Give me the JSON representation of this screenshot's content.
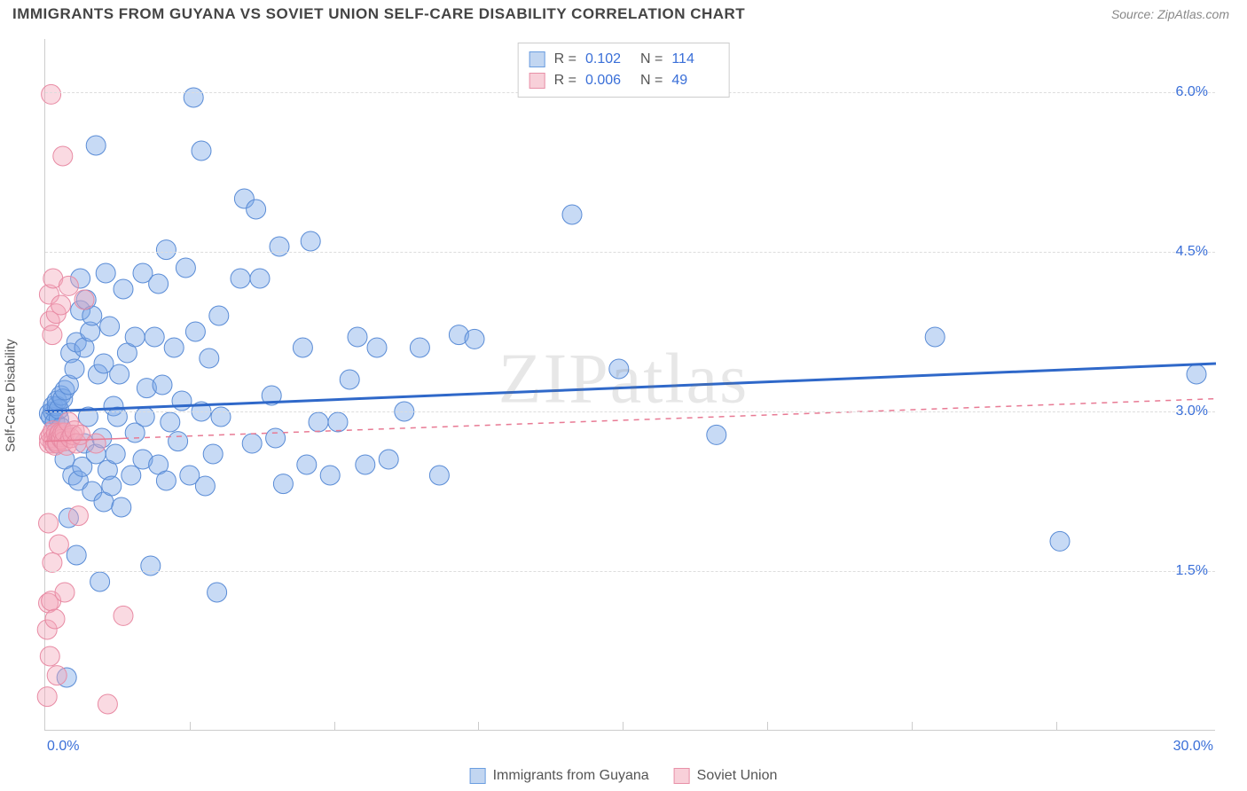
{
  "header": {
    "title": "IMMIGRANTS FROM GUYANA VS SOVIET UNION SELF-CARE DISABILITY CORRELATION CHART",
    "source_prefix": "Source: ",
    "source": "ZipAtlas.com"
  },
  "watermark": "ZIPatlas",
  "chart": {
    "type": "scatter",
    "ylabel": "Self-Care Disability",
    "xlim": [
      0,
      30
    ],
    "ylim": [
      0,
      6.5
    ],
    "xticks_minor": [
      3.7,
      7.4,
      11.1,
      14.8,
      18.5,
      22.2,
      25.9
    ],
    "xtick_end": {
      "pos": 30,
      "label": "30.0%"
    },
    "xtick_start": {
      "pos": 0,
      "label": "0.0%"
    },
    "yticks": [
      {
        "pos": 1.5,
        "label": "1.5%"
      },
      {
        "pos": 3.0,
        "label": "3.0%"
      },
      {
        "pos": 4.5,
        "label": "4.5%"
      },
      {
        "pos": 6.0,
        "label": "6.0%"
      }
    ],
    "background_color": "#ffffff",
    "grid_color": "#dddddd",
    "axis_color": "#cccccc",
    "tick_label_color": "#3a6fd8",
    "marker_radius": 11,
    "marker_opacity": 0.42,
    "series": [
      {
        "name": "Immigrants from Guyana",
        "color_fill": "#7aa8e6",
        "color_stroke": "#5a8cd6",
        "R": "0.102",
        "N": "114",
        "trend": {
          "type": "solid",
          "color": "#2f68c9",
          "width": 3,
          "x1": 0,
          "y1": 3.0,
          "x2": 30,
          "y2": 3.45
        },
        "points": [
          [
            0.1,
            2.98
          ],
          [
            0.15,
            2.95
          ],
          [
            0.2,
            3.0
          ],
          [
            0.2,
            3.05
          ],
          [
            0.25,
            2.9
          ],
          [
            0.3,
            3.05
          ],
          [
            0.3,
            2.7
          ],
          [
            0.3,
            3.1
          ],
          [
            0.35,
            2.93
          ],
          [
            0.35,
            3.02
          ],
          [
            0.4,
            3.15
          ],
          [
            0.4,
            2.85
          ],
          [
            0.45,
            3.12
          ],
          [
            0.5,
            2.55
          ],
          [
            0.5,
            3.2
          ],
          [
            0.55,
            0.5
          ],
          [
            0.6,
            2.0
          ],
          [
            0.6,
            3.25
          ],
          [
            0.65,
            3.55
          ],
          [
            0.7,
            2.4
          ],
          [
            0.75,
            3.4
          ],
          [
            0.8,
            1.65
          ],
          [
            0.8,
            3.65
          ],
          [
            0.85,
            2.35
          ],
          [
            0.9,
            3.95
          ],
          [
            0.9,
            4.25
          ],
          [
            0.95,
            2.48
          ],
          [
            1.0,
            3.6
          ],
          [
            1.0,
            2.7
          ],
          [
            1.05,
            4.05
          ],
          [
            1.1,
            2.95
          ],
          [
            1.15,
            3.75
          ],
          [
            1.2,
            2.25
          ],
          [
            1.2,
            3.9
          ],
          [
            1.3,
            5.5
          ],
          [
            1.3,
            2.6
          ],
          [
            1.35,
            3.35
          ],
          [
            1.4,
            1.4
          ],
          [
            1.45,
            2.75
          ],
          [
            1.5,
            2.15
          ],
          [
            1.5,
            3.45
          ],
          [
            1.55,
            4.3
          ],
          [
            1.6,
            2.45
          ],
          [
            1.65,
            3.8
          ],
          [
            1.7,
            2.3
          ],
          [
            1.75,
            3.05
          ],
          [
            1.8,
            2.6
          ],
          [
            1.85,
            2.95
          ],
          [
            1.9,
            3.35
          ],
          [
            1.95,
            2.1
          ],
          [
            2.0,
            4.15
          ],
          [
            2.1,
            3.55
          ],
          [
            2.2,
            2.4
          ],
          [
            2.3,
            2.8
          ],
          [
            2.3,
            3.7
          ],
          [
            2.5,
            4.3
          ],
          [
            2.5,
            2.55
          ],
          [
            2.55,
            2.95
          ],
          [
            2.6,
            3.22
          ],
          [
            2.7,
            1.55
          ],
          [
            2.8,
            3.7
          ],
          [
            2.9,
            2.5
          ],
          [
            2.9,
            4.2
          ],
          [
            3.0,
            3.25
          ],
          [
            3.1,
            4.52
          ],
          [
            3.1,
            2.35
          ],
          [
            3.2,
            2.9
          ],
          [
            3.3,
            3.6
          ],
          [
            3.4,
            2.72
          ],
          [
            3.5,
            3.1
          ],
          [
            3.6,
            4.35
          ],
          [
            3.7,
            2.4
          ],
          [
            3.8,
            5.95
          ],
          [
            3.85,
            3.75
          ],
          [
            4.0,
            5.45
          ],
          [
            4.0,
            3.0
          ],
          [
            4.1,
            2.3
          ],
          [
            4.2,
            3.5
          ],
          [
            4.3,
            2.6
          ],
          [
            4.4,
            1.3
          ],
          [
            4.45,
            3.9
          ],
          [
            4.5,
            2.95
          ],
          [
            5.0,
            4.25
          ],
          [
            5.1,
            5.0
          ],
          [
            5.3,
            2.7
          ],
          [
            5.4,
            4.9
          ],
          [
            5.5,
            4.25
          ],
          [
            5.8,
            3.15
          ],
          [
            5.9,
            2.75
          ],
          [
            6.0,
            4.55
          ],
          [
            6.1,
            2.32
          ],
          [
            6.6,
            3.6
          ],
          [
            6.7,
            2.5
          ],
          [
            6.8,
            4.6
          ],
          [
            7.0,
            2.9
          ],
          [
            7.3,
            2.4
          ],
          [
            7.5,
            2.9
          ],
          [
            7.8,
            3.3
          ],
          [
            8.0,
            3.7
          ],
          [
            8.2,
            2.5
          ],
          [
            8.5,
            3.6
          ],
          [
            8.8,
            2.55
          ],
          [
            9.2,
            3.0
          ],
          [
            9.6,
            3.6
          ],
          [
            10.1,
            2.4
          ],
          [
            10.6,
            3.72
          ],
          [
            11.0,
            3.68
          ],
          [
            13.5,
            4.85
          ],
          [
            14.7,
            3.4
          ],
          [
            17.2,
            2.78
          ],
          [
            22.8,
            3.7
          ],
          [
            26.0,
            1.78
          ],
          [
            29.5,
            3.35
          ]
        ]
      },
      {
        "name": "Soviet Union",
        "color_fill": "#f4a6ba",
        "color_stroke": "#e88ba4",
        "R": "0.006",
        "N": "49",
        "trend": {
          "type": "solid-then-dashed",
          "solid_xmax": 2.0,
          "color": "#e87a94",
          "width": 1.5,
          "x1": 0,
          "y1": 2.72,
          "x2": 30,
          "y2": 3.12
        },
        "points": [
          [
            0.05,
            0.32
          ],
          [
            0.05,
            0.95
          ],
          [
            0.08,
            1.2
          ],
          [
            0.08,
            1.95
          ],
          [
            0.1,
            4.1
          ],
          [
            0.1,
            2.75
          ],
          [
            0.1,
            2.7
          ],
          [
            0.12,
            3.85
          ],
          [
            0.12,
            0.7
          ],
          [
            0.15,
            5.98
          ],
          [
            0.15,
            2.78
          ],
          [
            0.15,
            1.22
          ],
          [
            0.18,
            1.58
          ],
          [
            0.18,
            3.72
          ],
          [
            0.2,
            2.82
          ],
          [
            0.2,
            2.7
          ],
          [
            0.2,
            4.25
          ],
          [
            0.22,
            2.75
          ],
          [
            0.25,
            2.68
          ],
          [
            0.25,
            1.05
          ],
          [
            0.28,
            3.92
          ],
          [
            0.28,
            2.8
          ],
          [
            0.3,
            2.72
          ],
          [
            0.3,
            0.52
          ],
          [
            0.32,
            2.7
          ],
          [
            0.35,
            2.78
          ],
          [
            0.35,
            1.75
          ],
          [
            0.38,
            2.8
          ],
          [
            0.4,
            2.76
          ],
          [
            0.4,
            4.0
          ],
          [
            0.42,
            2.74
          ],
          [
            0.45,
            2.8
          ],
          [
            0.45,
            5.4
          ],
          [
            0.48,
            2.72
          ],
          [
            0.5,
            2.8
          ],
          [
            0.5,
            1.3
          ],
          [
            0.55,
            2.68
          ],
          [
            0.6,
            2.9
          ],
          [
            0.6,
            4.18
          ],
          [
            0.65,
            2.75
          ],
          [
            0.7,
            2.78
          ],
          [
            0.75,
            2.82
          ],
          [
            0.8,
            2.7
          ],
          [
            0.85,
            2.02
          ],
          [
            0.9,
            2.78
          ],
          [
            1.0,
            4.05
          ],
          [
            1.3,
            2.7
          ],
          [
            1.6,
            0.25
          ],
          [
            2.0,
            1.08
          ]
        ]
      }
    ],
    "legend_bottom": [
      {
        "swatch": "blue",
        "label": "Immigrants from Guyana"
      },
      {
        "swatch": "pink",
        "label": "Soviet Union"
      }
    ]
  }
}
